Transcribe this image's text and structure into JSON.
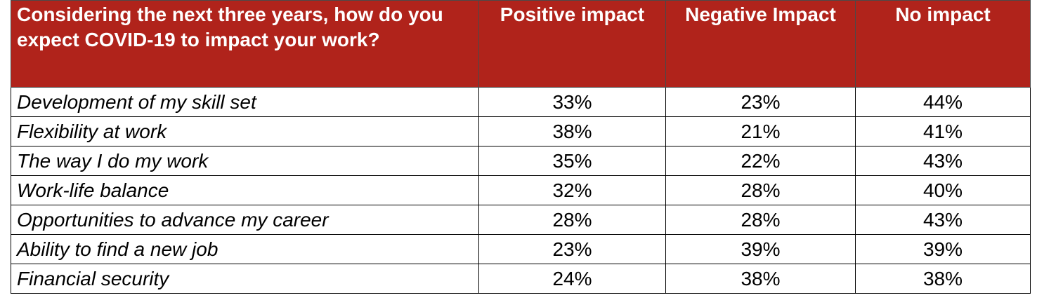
{
  "chart_data": {
    "type": "table",
    "columns": [
      "Considering the next three years, how do you expect COVID-19 to impact your work?",
      "Positive impact",
      "Negative Impact",
      "No impact"
    ],
    "rows": [
      {
        "label": "Development of my skill set",
        "values": [
          "33%",
          "23%",
          "44%"
        ]
      },
      {
        "label": "Flexibility at work",
        "values": [
          "38%",
          "21%",
          "41%"
        ]
      },
      {
        "label": "The way I do my work",
        "values": [
          "35%",
          "22%",
          "43%"
        ]
      },
      {
        "label": "Work-life balance",
        "values": [
          "32%",
          "28%",
          "40%"
        ]
      },
      {
        "label": "Opportunities to advance my career",
        "values": [
          "28%",
          "28%",
          "43%"
        ]
      },
      {
        "label": "Ability to find a new job",
        "values": [
          "23%",
          "39%",
          "39%"
        ]
      },
      {
        "label": "Financial security",
        "values": [
          "24%",
          "38%",
          "38%"
        ]
      }
    ],
    "header_color": "#B0231B",
    "header_text_color": "#FFFFFF"
  }
}
